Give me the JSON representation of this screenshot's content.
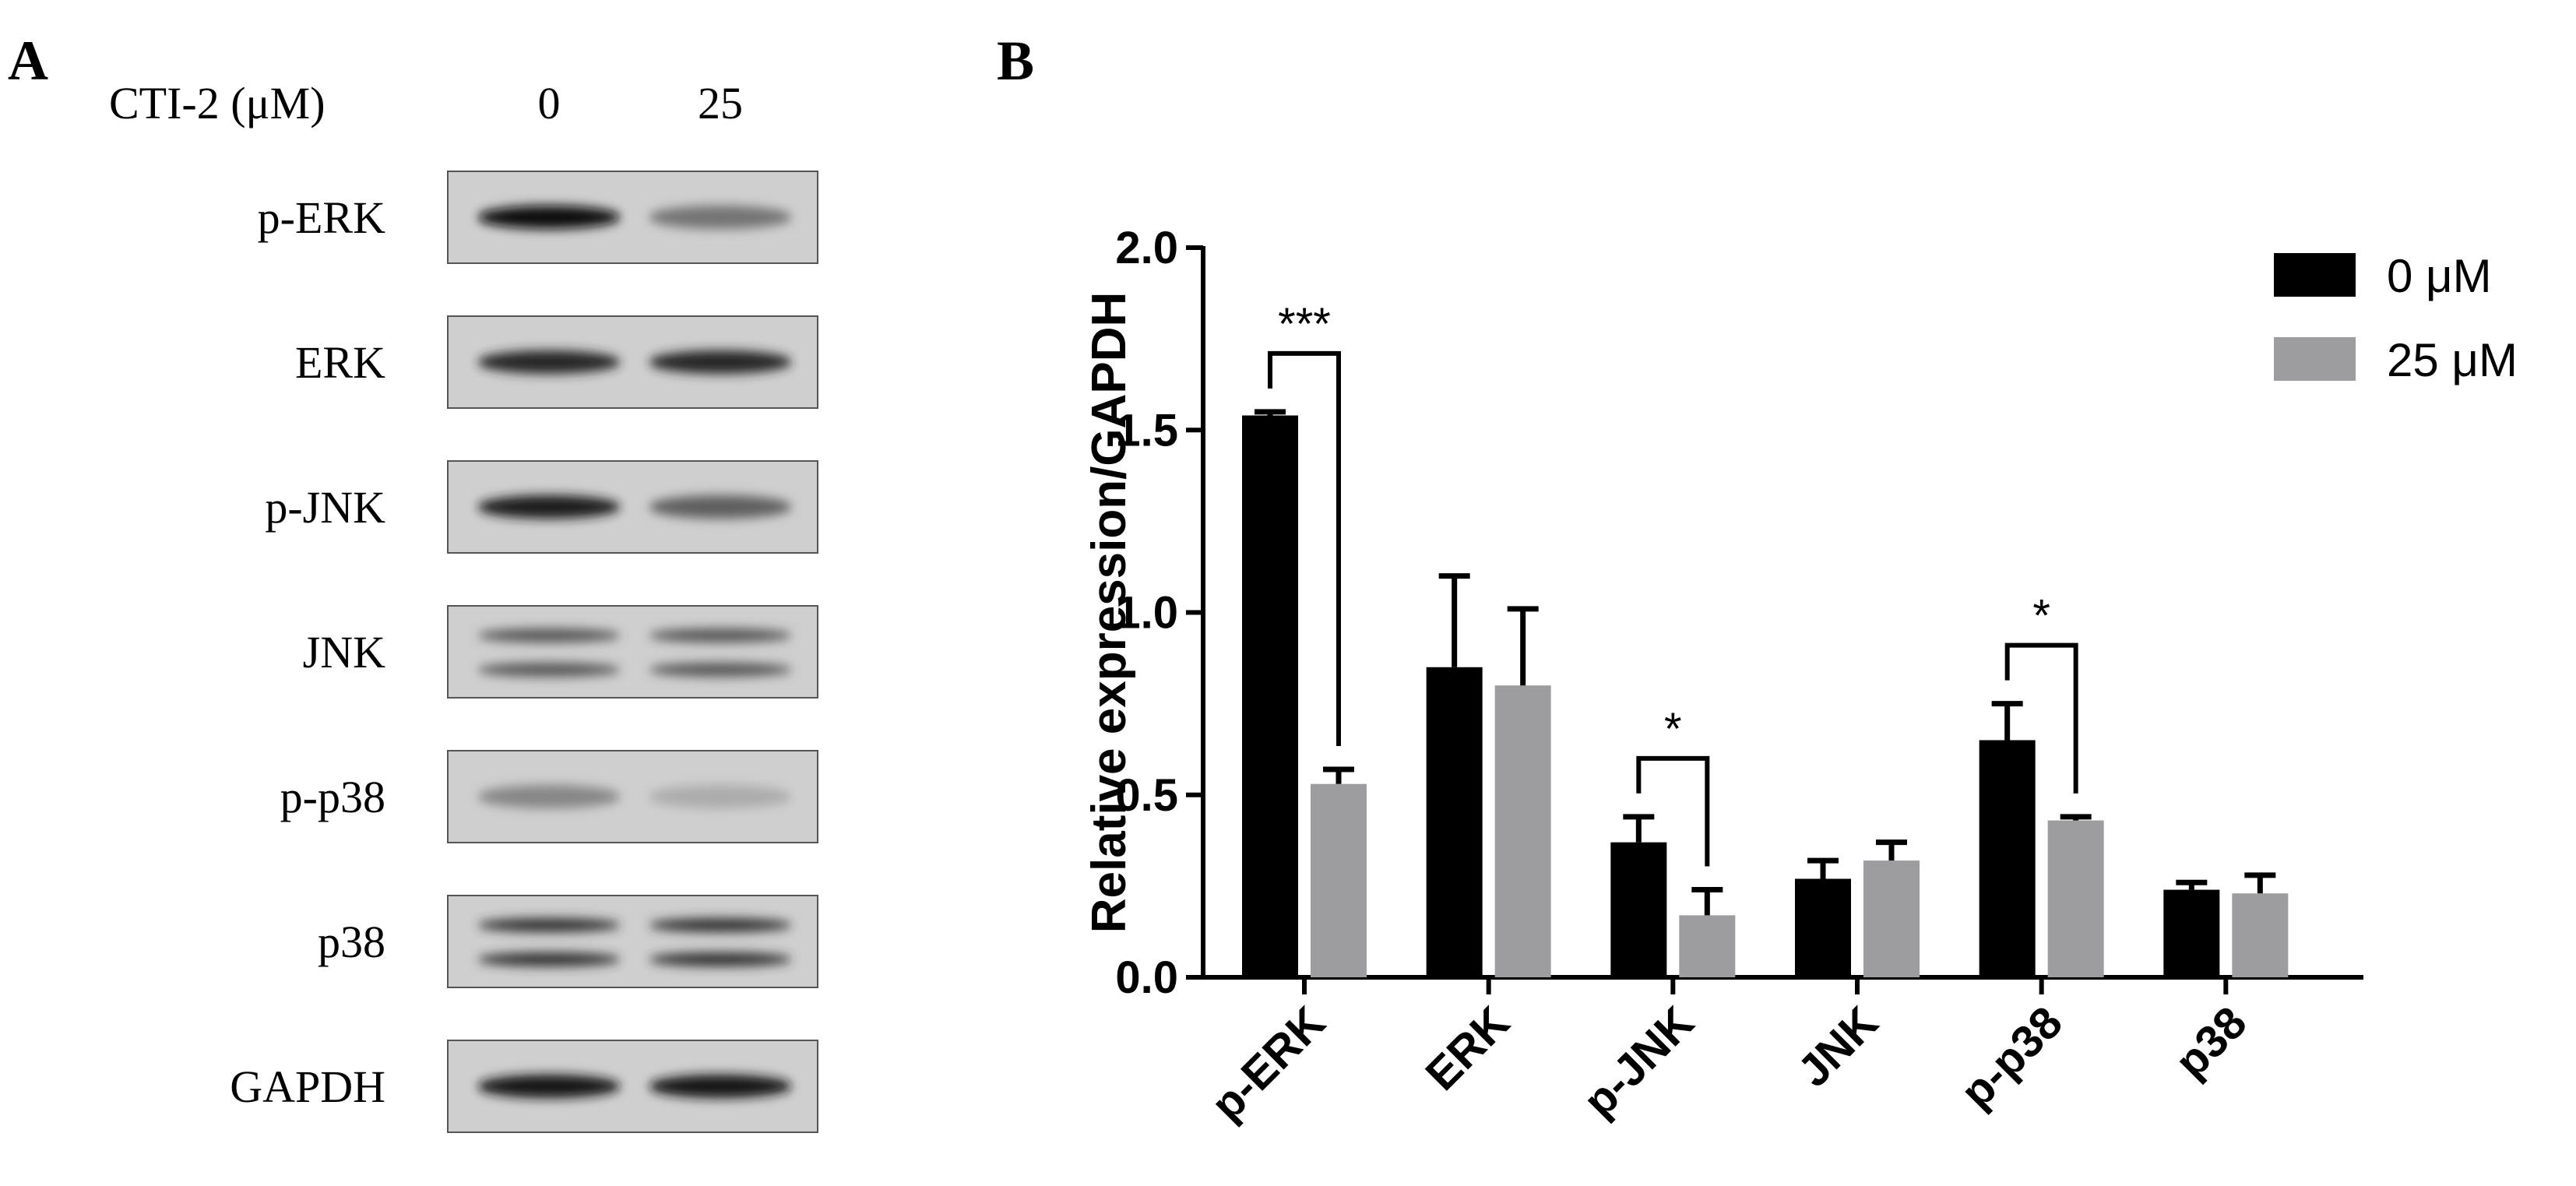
{
  "panel_a": {
    "label": "A",
    "treatment_label": "CTI-2 (μM)",
    "concentrations": [
      "0",
      "25"
    ],
    "blots": [
      {
        "label": "p-ERK",
        "intensities": [
          1.0,
          0.45
        ],
        "bands": 1
      },
      {
        "label": "ERK",
        "intensities": [
          0.85,
          0.85
        ],
        "bands": 1
      },
      {
        "label": "p-JNK",
        "intensities": [
          0.9,
          0.55
        ],
        "bands": 1
      },
      {
        "label": "JNK",
        "intensities": [
          0.6,
          0.6
        ],
        "bands": 2
      },
      {
        "label": "p-p38",
        "intensities": [
          0.35,
          0.15
        ],
        "bands": 1
      },
      {
        "label": "p38",
        "intensities": [
          0.8,
          0.8
        ],
        "bands": 2
      },
      {
        "label": "GAPDH",
        "intensities": [
          0.95,
          0.95
        ],
        "bands": 1
      }
    ]
  },
  "panel_b": {
    "label": "B"
  },
  "chart_data": {
    "type": "bar",
    "title": "",
    "xlabel": "",
    "ylabel": "Relative expression/GAPDH",
    "ylim": [
      0,
      2.0
    ],
    "yticks": [
      "0.0",
      "0.5",
      "1.0",
      "1.5",
      "2.0"
    ],
    "categories": [
      "p-ERK",
      "ERK",
      "p-JNK",
      "JNK",
      "p-p38",
      "p38"
    ],
    "series": [
      {
        "name": "0 μM",
        "color": "#000000",
        "values": [
          1.54,
          0.85,
          0.37,
          0.27,
          0.65,
          0.24
        ],
        "errors": [
          0.01,
          0.25,
          0.07,
          0.05,
          0.1,
          0.02
        ]
      },
      {
        "name": "25 μM",
        "color": "#9d9d9f",
        "values": [
          0.53,
          0.8,
          0.17,
          0.32,
          0.43,
          0.23
        ],
        "errors": [
          0.04,
          0.21,
          0.07,
          0.05,
          0.01,
          0.05
        ]
      }
    ],
    "legend_position": "top-right",
    "significance": [
      {
        "category": "p-ERK",
        "label": "***"
      },
      {
        "category": "p-JNK",
        "label": "*"
      },
      {
        "category": "p-p38",
        "label": "*"
      }
    ]
  }
}
